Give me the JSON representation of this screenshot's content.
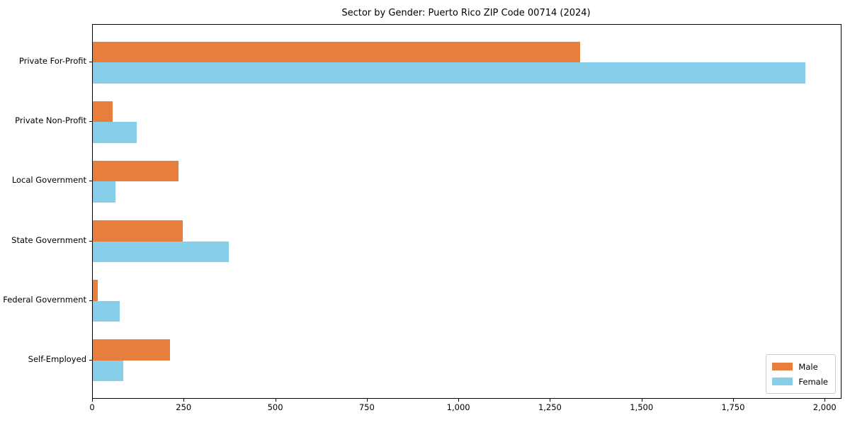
{
  "chart_data": {
    "type": "bar",
    "orientation": "horizontal",
    "title": "Sector by Gender: Puerto Rico ZIP Code 00714 (2024)",
    "categories": [
      "Private For-Profit",
      "Private Non-Profit",
      "Local Government",
      "State Government",
      "Federal Government",
      "Self-Employed"
    ],
    "series": [
      {
        "name": "Male",
        "color": "#e87e3d",
        "values": [
          1330,
          54,
          234,
          245,
          14,
          210
        ]
      },
      {
        "name": "Female",
        "color": "#87ceeb",
        "values": [
          1945,
          120,
          61,
          371,
          74,
          83
        ]
      }
    ],
    "xlim": [
      0,
      2042
    ],
    "x_ticks": [
      0,
      250,
      500,
      750,
      1000,
      1250,
      1500,
      1750,
      2000
    ],
    "x_tick_labels": [
      "0",
      "250",
      "500",
      "750",
      "1,000",
      "1,250",
      "1,500",
      "1,750",
      "2,000"
    ],
    "bar_height_fraction": 0.35,
    "grid": false,
    "legend": {
      "position": "lower right",
      "border_color": "#cccccc"
    },
    "colors": {
      "spine": "#000000",
      "text": "#000000",
      "background": "#ffffff"
    }
  }
}
